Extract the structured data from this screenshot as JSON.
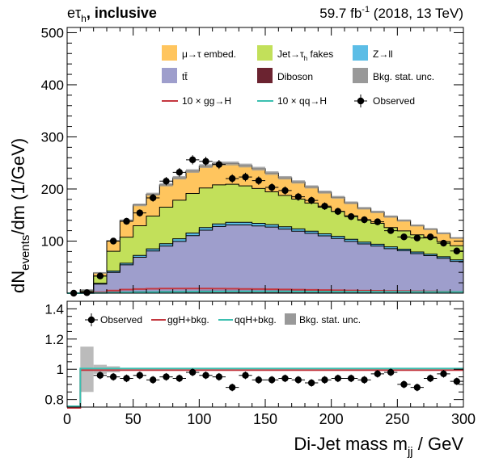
{
  "header": {
    "channel_main": "eτ",
    "channel_sub": "h",
    "channel_suffix": ", inclusive",
    "lumi_main": "59.7 fb",
    "lumi_sup": "-1",
    "lumi_suffix": " (2018, 13 TeV)"
  },
  "colors": {
    "embed": "#ffc55e",
    "fakes": "#c2e05a",
    "zll": "#5cbde6",
    "ttbar": "#9e9ecc",
    "diboson": "#6b2330",
    "stat_unc": "#999999",
    "ggh": "#c4373f",
    "qqh": "#3bbfb0",
    "observed": "#000000"
  },
  "chart_data": [
    {
      "type": "bar",
      "panel": "main",
      "ylabel_main": "dN",
      "ylabel_sub": "events",
      "ylabel_suffix": "/dm (1/GeV)",
      "xlim": [
        0,
        300
      ],
      "ylim": [
        0,
        510
      ],
      "yticks": [
        "100",
        "200",
        "300",
        "400",
        "500"
      ],
      "stacked": true,
      "x_bin_edges": [
        0,
        10,
        20,
        30,
        40,
        50,
        60,
        70,
        80,
        90,
        100,
        110,
        120,
        130,
        140,
        150,
        160,
        170,
        180,
        190,
        200,
        210,
        220,
        230,
        240,
        250,
        260,
        270,
        280,
        290,
        300
      ],
      "legend": {
        "entries": [
          {
            "label": "μ→τ embed.",
            "kind": "box",
            "color": "embed"
          },
          {
            "label": "Jet→τ",
            "sub": "h",
            "suffix": " fakes",
            "kind": "box",
            "color": "fakes"
          },
          {
            "label": "Z→ll",
            "kind": "box",
            "color": "zll"
          },
          {
            "label": "tt̄",
            "kind": "box",
            "color": "ttbar"
          },
          {
            "label": "Diboson",
            "kind": "box",
            "color": "diboson"
          },
          {
            "label": "Bkg. stat. unc.",
            "kind": "box",
            "color": "stat_unc"
          },
          {
            "label": "10 × gg→H",
            "kind": "line",
            "color": "ggh"
          },
          {
            "label": "10 × qq→H",
            "kind": "line",
            "color": "qqh"
          },
          {
            "label": "Observed",
            "kind": "point",
            "color": "observed"
          }
        ]
      },
      "series": [
        {
          "name": "Diboson",
          "color": "diboson",
          "values": [
            0,
            0.5,
            1.5,
            2,
            2.5,
            3,
            3,
            3.5,
            3.5,
            3.5,
            4,
            4,
            4,
            4,
            4,
            4,
            4,
            4,
            4,
            4,
            4,
            3.5,
            3.5,
            3.5,
            3.5,
            3.5,
            3,
            3,
            3,
            3
          ]
        },
        {
          "name": "tt̄",
          "color": "ttbar",
          "values": [
            0,
            2,
            16,
            38,
            52,
            66,
            78,
            87,
            96,
            107,
            117,
            124,
            127,
            127,
            125,
            123,
            119,
            115,
            111,
            106,
            101,
            96,
            91,
            87,
            82,
            78,
            73,
            69,
            64,
            58
          ]
        },
        {
          "name": "Z→ll",
          "color": "zll",
          "values": [
            0,
            0.5,
            1.5,
            2.5,
            3,
            3.5,
            4,
            4.5,
            5,
            5,
            5,
            5,
            5,
            5,
            5,
            4.5,
            4.5,
            4.5,
            4,
            4,
            4,
            4,
            3.5,
            3.5,
            3.5,
            3,
            3,
            3,
            3,
            3
          ]
        },
        {
          "name": "Jet→τh fakes",
          "color": "fakes",
          "values": [
            0,
            2,
            14,
            38,
            50,
            57,
            63,
            70,
            74,
            76,
            76,
            75,
            73,
            70,
            67,
            63,
            60,
            57,
            54,
            51,
            48,
            45,
            42,
            40,
            37,
            35,
            33,
            31,
            29,
            27
          ]
        },
        {
          "name": "μ→τ embed.",
          "color": "embed",
          "values": [
            0,
            1,
            6,
            20,
            32,
            40,
            42,
            43,
            43,
            43,
            42,
            41,
            40,
            39,
            38,
            36,
            34,
            33,
            31,
            29,
            27,
            25,
            23,
            22,
            21,
            20,
            18,
            17,
            16,
            15
          ]
        },
        {
          "name": "10 × gg→H",
          "color": "ggh",
          "values": [
            0,
            0.3,
            2,
            5,
            7,
            8,
            8.5,
            9,
            9,
            9,
            9,
            8.8,
            8.5,
            8.2,
            8,
            7.6,
            7.2,
            6.8,
            6.4,
            6,
            5.6,
            5.2,
            4.9,
            4.6,
            4.3,
            4,
            3.7,
            3.4,
            3.1,
            2.8
          ]
        },
        {
          "name": "10 × qq→H",
          "color": "qqh",
          "values": [
            0,
            0.1,
            0.5,
            1,
            1.5,
            2,
            2.2,
            2.5,
            2.7,
            2.9,
            3,
            3.1,
            3.2,
            3.2,
            3.2,
            3.2,
            3.2,
            3.1,
            3.1,
            3,
            3,
            2.9,
            2.9,
            2.8,
            2.8,
            2.7,
            2.6,
            2.6,
            2.5,
            2.5
          ]
        },
        {
          "name": "Observed",
          "color": "observed",
          "x": [
            5,
            15,
            25,
            35,
            45,
            55,
            65,
            75,
            85,
            95,
            105,
            115,
            125,
            135,
            145,
            155,
            165,
            175,
            185,
            195,
            205,
            215,
            225,
            235,
            245,
            255,
            265,
            275,
            285,
            295
          ],
          "values": [
            0,
            1,
            33,
            100,
            138,
            154,
            183,
            215,
            232,
            256,
            253,
            247,
            220,
            223,
            216,
            203,
            197,
            185,
            178,
            167,
            157,
            147,
            141,
            137,
            120,
            108,
            106,
            108,
            96,
            81
          ]
        }
      ]
    },
    {
      "type": "line",
      "panel": "ratio",
      "xlabel_main": "Di-Jet mass m",
      "xlabel_sub": "jj",
      "xlabel_suffix": " / GeV",
      "xlim": [
        0,
        300
      ],
      "ylim": [
        0.75,
        1.45
      ],
      "xticks": [
        "0",
        "50",
        "100",
        "150",
        "200",
        "250",
        "300"
      ],
      "yticks": [
        "0.8",
        "1",
        "1.2",
        "1.4"
      ],
      "legend": {
        "entries": [
          {
            "label": "Observed",
            "kind": "point",
            "color": "observed"
          },
          {
            "label": "ggH+bkg.",
            "kind": "line",
            "color": "ggh"
          },
          {
            "label": "qqH+bkg.",
            "kind": "line",
            "color": "qqh"
          },
          {
            "label": "Bkg. stat. unc.",
            "kind": "box",
            "color": "stat_unc"
          }
        ]
      },
      "stat_unc_band": [
        {
          "x0": 10,
          "x1": 20,
          "low": 0.85,
          "high": 1.15
        },
        {
          "x0": 20,
          "x1": 30,
          "low": 0.97,
          "high": 1.03
        },
        {
          "x0": 30,
          "x1": 40,
          "low": 0.98,
          "high": 1.02
        }
      ],
      "series": [
        {
          "name": "ggH+bkg.",
          "color": "ggh",
          "x_bin_edges": [
            0,
            10,
            300
          ],
          "values": [
            0.75,
            1.0
          ]
        },
        {
          "name": "qqH+bkg.",
          "color": "qqh",
          "x_bin_edges": [
            0,
            10,
            300
          ],
          "values": [
            0.75,
            1.0
          ]
        },
        {
          "name": "Observed",
          "color": "observed",
          "x": [
            25,
            35,
            45,
            55,
            65,
            75,
            85,
            95,
            105,
            115,
            125,
            135,
            145,
            155,
            165,
            175,
            185,
            195,
            205,
            215,
            225,
            235,
            245,
            255,
            265,
            275,
            285,
            295
          ],
          "values": [
            0.96,
            0.95,
            0.94,
            0.96,
            0.93,
            0.95,
            0.94,
            0.98,
            0.96,
            0.95,
            0.88,
            0.96,
            0.93,
            0.93,
            0.94,
            0.93,
            0.91,
            0.93,
            0.94,
            0.94,
            0.93,
            0.97,
            0.98,
            0.9,
            0.88,
            0.94,
            0.97,
            0.92
          ]
        }
      ]
    }
  ]
}
